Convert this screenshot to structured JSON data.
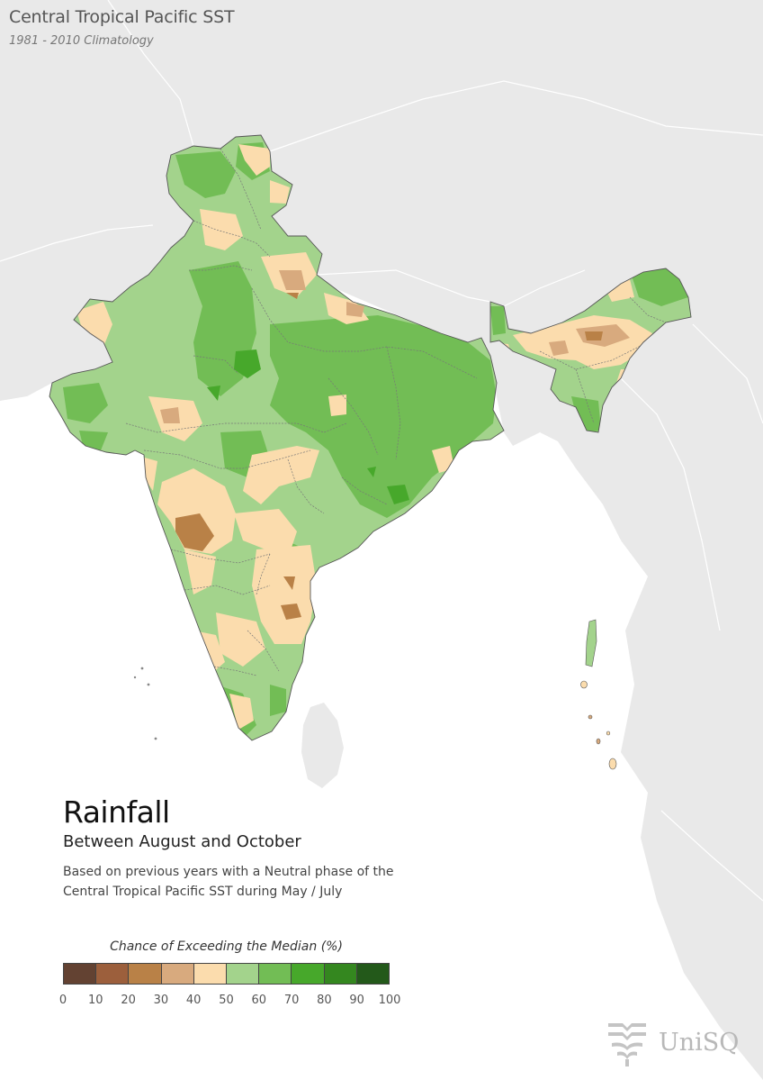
{
  "header": {
    "title": "Central Tropical Pacific SST",
    "subtitle": "1981 - 2010 Climatology"
  },
  "info": {
    "title": "Rainfall",
    "subtitle": "Between August and October",
    "description": "Based on previous years with a Neutral phase of the Central Tropical Pacific SST during May / July"
  },
  "legend": {
    "title": "Chance of Exceeding the Median (%)",
    "ticks": [
      "0",
      "10",
      "20",
      "30",
      "40",
      "50",
      "60",
      "70",
      "80",
      "90",
      "100"
    ],
    "colors": [
      "#634232",
      "#9c5f3c",
      "#b98147",
      "#d8aa7e",
      "#fbdcad",
      "#a3d38c",
      "#72bd55",
      "#47a82b",
      "#34871f",
      "#23591a"
    ]
  },
  "map": {
    "land_color": "#e9e9e9",
    "sea_color": "#ffffff",
    "border_color": "#555555"
  },
  "logo": {
    "text": "UniSQ",
    "icon": "unisq-logo-icon"
  }
}
